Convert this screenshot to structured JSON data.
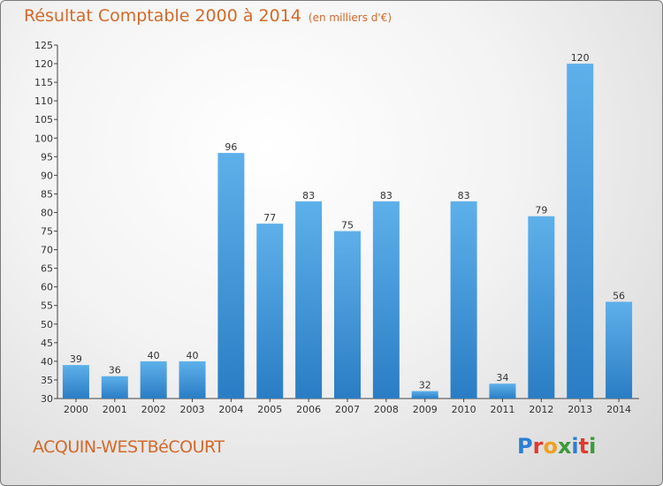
{
  "header": {
    "title": "Résultat Comptable 2000 à 2014",
    "subtitle": "(en milliers d'€)"
  },
  "footer": {
    "commune": "ACQUIN-WESTBéCOURT",
    "brand_letters": [
      "P",
      "r",
      "o",
      "x",
      "i",
      "t",
      "i"
    ]
  },
  "colors": {
    "bar": "#3b95d8",
    "title": "#d2692a",
    "brand": [
      "#2a7fd4",
      "#e03a2e",
      "#f0a020",
      "#3a9a3a",
      "#2a7fd4",
      "#e03a2e",
      "#3a9a3a"
    ]
  },
  "chart_data": {
    "type": "bar",
    "title": "Résultat Comptable 2000 à 2014",
    "subtitle": "(en milliers d'€)",
    "xlabel": "",
    "ylabel": "",
    "categories": [
      "2000",
      "2001",
      "2002",
      "2003",
      "2004",
      "2005",
      "2006",
      "2007",
      "2008",
      "2009",
      "2010",
      "2011",
      "2012",
      "2013",
      "2014"
    ],
    "values": [
      39,
      36,
      40,
      40,
      96,
      77,
      83,
      75,
      83,
      32,
      83,
      34,
      79,
      120,
      56
    ],
    "ylim": [
      30,
      125
    ],
    "yticks": [
      30,
      35,
      40,
      45,
      50,
      55,
      60,
      65,
      70,
      75,
      80,
      85,
      90,
      95,
      100,
      105,
      110,
      115,
      120,
      125
    ],
    "grid": false
  }
}
